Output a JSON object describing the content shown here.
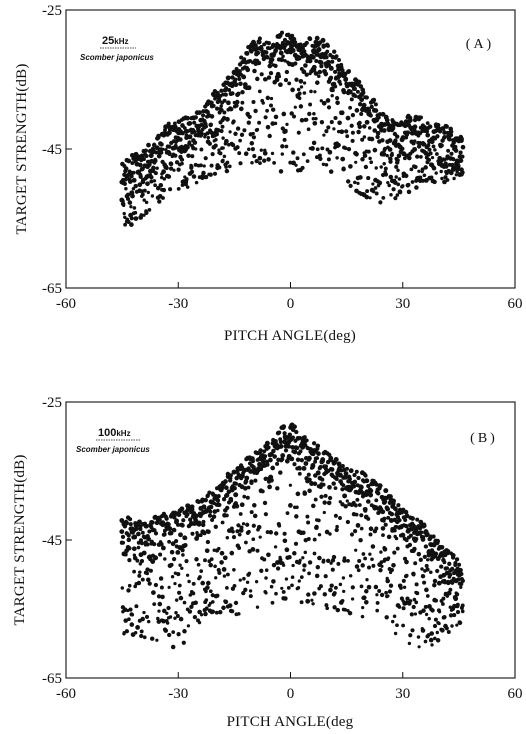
{
  "chart_data": [
    {
      "type": "scatter",
      "panel_label": "(A)",
      "frequency_value": "25",
      "frequency_unit": "kHz",
      "species": "Scomber japonicus",
      "xlabel": "PITCH ANGLE(deg)",
      "ylabel": "TARGET STRENGTH(dB)",
      "xlim": [
        -60,
        60
      ],
      "ylim": [
        -65,
        -25
      ],
      "xticks": [
        -60,
        -30,
        0,
        30,
        60
      ],
      "yticks": [
        -25,
        -45,
        -65
      ],
      "grid": false,
      "envelope_points": [
        [
          -45,
          -47
        ],
        [
          -40,
          -46
        ],
        [
          -36,
          -44
        ],
        [
          -33,
          -42
        ],
        [
          -30,
          -41
        ],
        [
          -27,
          -41
        ],
        [
          -24,
          -40
        ],
        [
          -20,
          -37
        ],
        [
          -16,
          -35
        ],
        [
          -13,
          -32
        ],
        [
          -10,
          -30
        ],
        [
          -8,
          -29.5
        ],
        [
          -5,
          -30
        ],
        [
          -3,
          -29
        ],
        [
          -1,
          -28.5
        ],
        [
          1,
          -29
        ],
        [
          3,
          -30
        ],
        [
          5,
          -29.5
        ],
        [
          8,
          -29.5
        ],
        [
          11,
          -31
        ],
        [
          14,
          -33
        ],
        [
          17,
          -35
        ],
        [
          20,
          -37
        ],
        [
          23,
          -39
        ],
        [
          26,
          -41
        ],
        [
          29,
          -42
        ],
        [
          32,
          -40
        ],
        [
          35,
          -41
        ],
        [
          38,
          -42
        ],
        [
          41,
          -42
        ],
        [
          44,
          -43
        ],
        [
          46,
          -44
        ]
      ],
      "lower_bound_points": [
        [
          -45,
          -57
        ],
        [
          -40,
          -55
        ],
        [
          -35,
          -53
        ],
        [
          -30,
          -51
        ],
        [
          -25,
          -50
        ],
        [
          -20,
          -49
        ],
        [
          -15,
          -48
        ],
        [
          -10,
          -47
        ],
        [
          -5,
          -49
        ],
        [
          0,
          -48
        ],
        [
          5,
          -49
        ],
        [
          10,
          -48
        ],
        [
          15,
          -50
        ],
        [
          20,
          -52
        ],
        [
          25,
          -53
        ],
        [
          30,
          -52
        ],
        [
          35,
          -50
        ],
        [
          40,
          -50
        ],
        [
          46,
          -49
        ]
      ]
    },
    {
      "type": "scatter",
      "panel_label": "(B)",
      "frequency_value": "100",
      "frequency_unit": "kHz",
      "species": "Scomber japonicus",
      "xlabel": "PITCH ANGLE(deg",
      "ylabel": "TARGET STRENGTH(dB)",
      "xlim": [
        -60,
        60
      ],
      "ylim": [
        -65,
        -25
      ],
      "xticks": [
        -60,
        -30,
        0,
        30,
        60
      ],
      "yticks": [
        -25,
        -45,
        -65
      ],
      "grid": false,
      "envelope_points": [
        [
          -45,
          -42
        ],
        [
          -40,
          -43
        ],
        [
          -35,
          -42
        ],
        [
          -30,
          -41
        ],
        [
          -25,
          -40
        ],
        [
          -20,
          -38
        ],
        [
          -15,
          -35
        ],
        [
          -10,
          -33
        ],
        [
          -5,
          -31
        ],
        [
          -2,
          -29
        ],
        [
          0,
          -28
        ],
        [
          2,
          -30
        ],
        [
          5,
          -31
        ],
        [
          10,
          -33
        ],
        [
          15,
          -35
        ],
        [
          20,
          -36
        ],
        [
          25,
          -38
        ],
        [
          30,
          -41
        ],
        [
          35,
          -43
        ],
        [
          40,
          -46
        ],
        [
          46,
          -49
        ]
      ],
      "lower_bound_points": [
        [
          -45,
          -60
        ],
        [
          -40,
          -59
        ],
        [
          -35,
          -60
        ],
        [
          -30,
          -61
        ],
        [
          -25,
          -58
        ],
        [
          -20,
          -57
        ],
        [
          -15,
          -56
        ],
        [
          -10,
          -55
        ],
        [
          -5,
          -55
        ],
        [
          0,
          -53
        ],
        [
          5,
          -55
        ],
        [
          10,
          -55
        ],
        [
          15,
          -56
        ],
        [
          20,
          -57
        ],
        [
          25,
          -57
        ],
        [
          30,
          -60
        ],
        [
          35,
          -61
        ],
        [
          40,
          -60
        ],
        [
          46,
          -57
        ]
      ]
    }
  ]
}
